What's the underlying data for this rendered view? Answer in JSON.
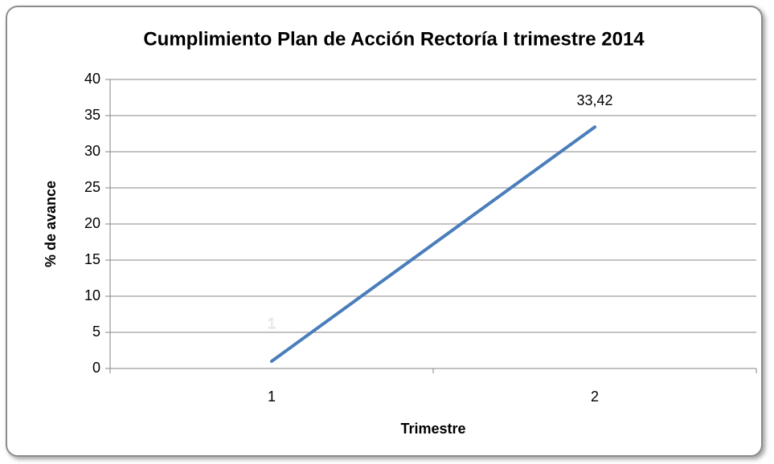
{
  "chart_data": {
    "type": "line",
    "title": "Cumplimiento Plan de Acción Rectoría I trimestre 2014",
    "x_label": "Trimestre",
    "y_label": "% de avance",
    "categories": [
      "1",
      "2"
    ],
    "series": [
      {
        "name": "% de avance",
        "color": "#4a7ebb",
        "values": [
          1,
          33.42
        ],
        "value_labels": [
          "1",
          "33,42"
        ]
      }
    ],
    "ylim": [
      0,
      40
    ],
    "yticks": [
      0,
      5,
      10,
      15,
      20,
      25,
      30,
      35,
      40
    ],
    "grid": true
  }
}
